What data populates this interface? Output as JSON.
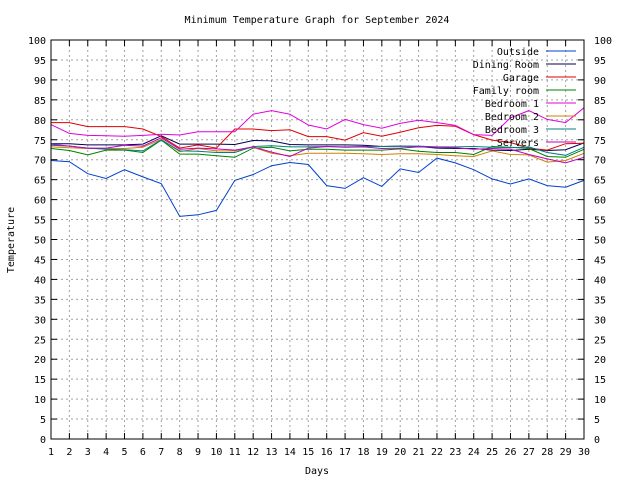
{
  "chart_data": {
    "type": "line",
    "title": "Minimum Temperature Graph for September 2024",
    "xlabel": "Days",
    "ylabel": "Temperature",
    "xlim": [
      1,
      30
    ],
    "ylim": [
      0,
      100
    ],
    "x_ticks": [
      1,
      2,
      3,
      4,
      5,
      6,
      7,
      8,
      9,
      10,
      11,
      12,
      13,
      14,
      15,
      16,
      17,
      18,
      19,
      20,
      21,
      22,
      23,
      24,
      25,
      26,
      27,
      28,
      29,
      30
    ],
    "y_ticks": [
      0,
      5,
      10,
      15,
      20,
      25,
      30,
      35,
      40,
      45,
      50,
      55,
      60,
      65,
      70,
      75,
      80,
      85,
      90,
      95,
      100
    ],
    "y_axis_mirrored_right": true,
    "grid": true,
    "legend_position": "top-right",
    "x": [
      1,
      2,
      3,
      4,
      5,
      6,
      7,
      8,
      9,
      10,
      11,
      12,
      13,
      14,
      15,
      16,
      17,
      18,
      19,
      20,
      21,
      22,
      23,
      24,
      25,
      26,
      27,
      28,
      29,
      30
    ],
    "series": [
      {
        "name": "Outside",
        "color": "#0040d0",
        "values": [
          69.8,
          69.5,
          66.5,
          65.3,
          67.5,
          65.7,
          64.0,
          55.8,
          56.2,
          57.3,
          64.8,
          66.3,
          68.5,
          69.3,
          68.8,
          63.5,
          62.8,
          65.5,
          63.3,
          67.7,
          66.8,
          70.4,
          69.2,
          67.5,
          65.2,
          63.9,
          65.2,
          63.5,
          63.1,
          64.8
        ]
      },
      {
        "name": "Dining Room",
        "color": "#000050",
        "values": [
          74.0,
          74.0,
          73.7,
          73.7,
          73.7,
          73.9,
          76.0,
          73.9,
          73.9,
          73.9,
          73.8,
          74.8,
          74.7,
          73.8,
          73.7,
          73.7,
          73.7,
          73.6,
          73.3,
          73.4,
          73.3,
          72.9,
          72.8,
          72.8,
          72.4,
          72.3,
          72.6,
          72.3,
          72.5,
          74.2
        ]
      },
      {
        "name": "Garage",
        "color": "#e00000",
        "values": [
          79.3,
          79.3,
          78.3,
          78.3,
          78.3,
          77.7,
          75.8,
          72.9,
          73.7,
          72.9,
          77.7,
          77.7,
          77.3,
          77.5,
          75.8,
          75.8,
          74.9,
          76.8,
          75.9,
          76.9,
          78.0,
          78.6,
          78.4,
          76.3,
          74.9,
          74.3,
          72.9,
          72.4,
          74.0,
          74.1
        ]
      },
      {
        "name": "Family room",
        "color": "#008000",
        "values": [
          72.8,
          72.3,
          71.2,
          72.4,
          72.4,
          71.8,
          74.9,
          71.4,
          71.4,
          71.0,
          70.6,
          72.9,
          73.1,
          72.2,
          72.6,
          72.6,
          72.4,
          72.4,
          72.4,
          72.7,
          72.1,
          71.8,
          71.8,
          71.3,
          73.3,
          73.1,
          72.8,
          70.8,
          70.6,
          72.6
        ]
      },
      {
        "name": "Bedroom 1",
        "color": "#e000e0",
        "values": [
          78.8,
          76.6,
          76.1,
          76.0,
          75.9,
          76.1,
          76.4,
          76.2,
          77.0,
          77.0,
          77.0,
          81.4,
          82.3,
          81.4,
          78.7,
          77.7,
          80.1,
          78.8,
          77.9,
          79.1,
          79.9,
          79.3,
          78.6,
          76.3,
          76.1,
          80.5,
          82.3,
          80.1,
          79.3,
          83.0
        ]
      },
      {
        "name": "Bedroom 2",
        "color": "#d08000",
        "values": [
          73.2,
          73.0,
          72.8,
          72.8,
          72.8,
          73.1,
          75.1,
          72.0,
          72.8,
          72.2,
          72.2,
          73.1,
          71.6,
          71.0,
          71.6,
          71.6,
          71.6,
          71.5,
          71.3,
          71.5,
          71.5,
          71.3,
          71.0,
          70.8,
          72.2,
          71.3,
          71.2,
          69.4,
          69.8,
          71.6
        ]
      },
      {
        "name": "Bedroom 3",
        "color": "#008080",
        "values": [
          73.6,
          73.4,
          72.9,
          72.6,
          72.5,
          72.2,
          75.0,
          72.2,
          72.1,
          71.8,
          71.8,
          73.3,
          73.5,
          73.2,
          73.2,
          73.3,
          73.2,
          73.3,
          73.3,
          73.4,
          73.4,
          73.2,
          73.2,
          73.3,
          73.1,
          73.0,
          73.2,
          71.8,
          71.1,
          73.1
        ]
      },
      {
        "name": "Servers",
        "color": "#c000c0",
        "values": [
          73.9,
          73.4,
          72.9,
          72.9,
          73.6,
          73.4,
          75.5,
          72.6,
          72.9,
          72.7,
          72.4,
          73.2,
          71.9,
          70.8,
          72.9,
          73.3,
          73.1,
          73.2,
          72.8,
          72.9,
          73.2,
          73.1,
          73.0,
          72.6,
          72.8,
          72.6,
          71.3,
          70.2,
          69.2,
          70.6
        ]
      }
    ]
  }
}
